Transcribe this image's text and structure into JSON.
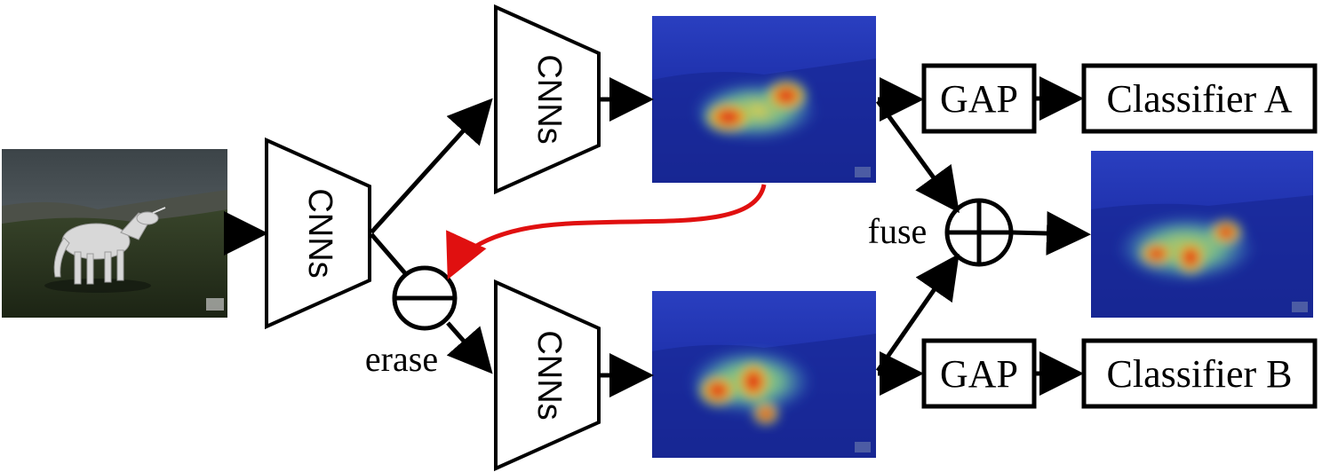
{
  "labels": {
    "cnn_main": "CNNs",
    "cnn_top": "CNNs",
    "cnn_bottom": "CNNs",
    "erase": "erase",
    "fuse": "fuse",
    "gap_top": "GAP",
    "gap_bottom": "GAP",
    "classifier_a": "Classifier A",
    "classifier_b": "Classifier B"
  },
  "colors": {
    "stroke": "#000000",
    "erase_arrow": "#e01010",
    "heat_background": "#1a2fa0"
  },
  "icons": {
    "erase_operator": "minus-circle-icon",
    "fuse_operator": "plus-circle-icon"
  }
}
